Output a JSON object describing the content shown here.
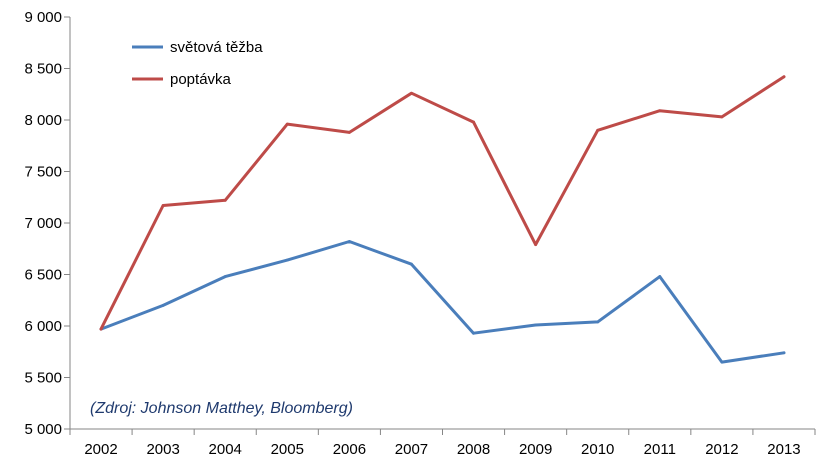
{
  "chart_data": {
    "type": "line",
    "categories": [
      "2002",
      "2003",
      "2004",
      "2005",
      "2006",
      "2007",
      "2008",
      "2009",
      "2010",
      "2011",
      "2012",
      "2013"
    ],
    "series": [
      {
        "name": "světová těžba",
        "color": "#4a7ebb",
        "values": [
          5970,
          6200,
          6480,
          6640,
          6820,
          6600,
          5930,
          6010,
          6040,
          6480,
          5650,
          5740
        ]
      },
      {
        "name": "poptávka",
        "color": "#be4b48",
        "values": [
          5970,
          7170,
          7220,
          7960,
          7880,
          8260,
          7980,
          6790,
          7900,
          8090,
          8030,
          8420
        ]
      }
    ],
    "ylim": [
      5000,
      9000
    ],
    "y_ticks": [
      5000,
      5500,
      6000,
      6500,
      7000,
      7500,
      8000,
      8500,
      9000
    ],
    "y_tick_labels": [
      "5 000",
      "5 500",
      "6 000",
      "6 500",
      "7 000",
      "7 500",
      "8 000",
      "8 500",
      "9 000"
    ],
    "grid": false,
    "legend_position": "top-left",
    "annotation": "(Zdroj: Johnson Matthey, Bloomberg)"
  }
}
